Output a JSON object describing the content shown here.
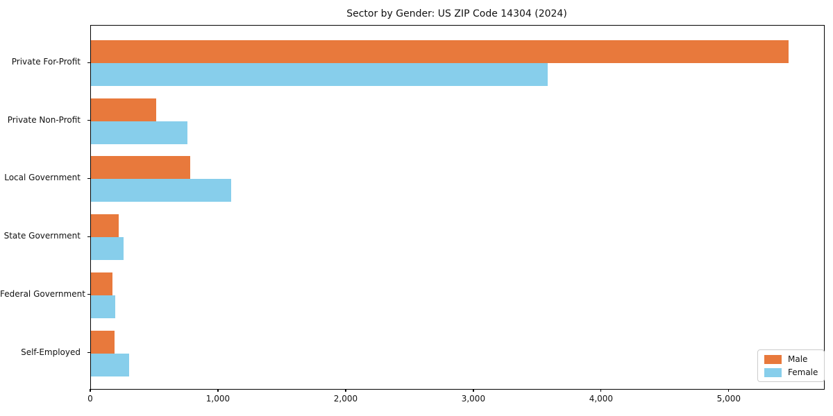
{
  "figure": {
    "background": "#ffffff"
  },
  "chart_data": {
    "type": "bar",
    "orientation": "horizontal",
    "title": "Sector by Gender: US ZIP Code 14304 (2024)",
    "categories": [
      "Private For-Profit",
      "Private Non-Profit",
      "Local Government",
      "State Government",
      "Federal Government",
      "Self-Employed"
    ],
    "series": [
      {
        "name": "Male",
        "color": "#E8793C",
        "values": [
          5465,
          510,
          775,
          215,
          170,
          185
        ]
      },
      {
        "name": "Female",
        "color": "#87CEEB",
        "values": [
          3575,
          755,
          1100,
          255,
          190,
          300
        ]
      }
    ],
    "xlabel": "",
    "ylabel": "",
    "xlim": [
      0,
      5740
    ],
    "xticks": [
      0,
      1000,
      2000,
      3000,
      4000,
      5000
    ],
    "xtick_labels": [
      "0",
      "1,000",
      "2,000",
      "3,000",
      "4,000",
      "5,000"
    ],
    "grid": false,
    "legend": {
      "position": "lower-right",
      "entries": [
        "Male",
        "Female"
      ]
    }
  }
}
